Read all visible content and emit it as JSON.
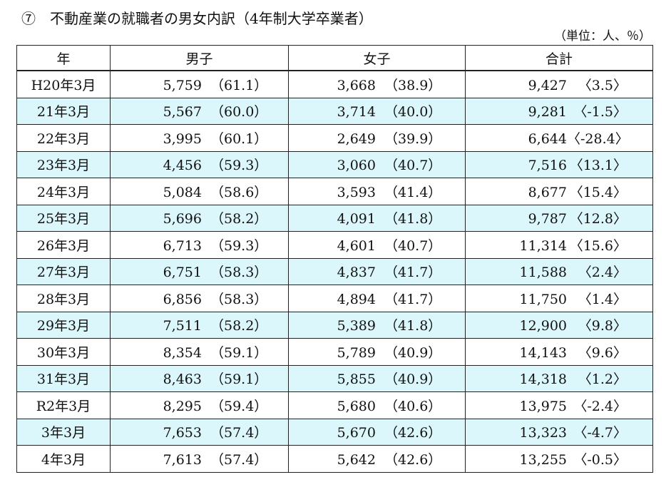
{
  "title": "⑦　不動産業の就職者の男女内訳（4年制大学卒業者）",
  "unit": "（単位：人、％）",
  "headers": {
    "year": "年",
    "male": "男子",
    "female": "女子",
    "total": "合計"
  },
  "rows": [
    {
      "year": "H20年3月",
      "male": "5,759",
      "male_pct": "（61.1）",
      "female": "3,668",
      "female_pct": "（38.9）",
      "total": "9,427",
      "change": "〈3.5〉"
    },
    {
      "year": "21年3月",
      "male": "5,567",
      "male_pct": "（60.0）",
      "female": "3,714",
      "female_pct": "（40.0）",
      "total": "9,281",
      "change": "〈-1.5〉"
    },
    {
      "year": "22年3月",
      "male": "3,995",
      "male_pct": "（60.1）",
      "female": "2,649",
      "female_pct": "（39.9）",
      "total": "6,644",
      "change": "〈-28.4〉"
    },
    {
      "year": "23年3月",
      "male": "4,456",
      "male_pct": "（59.3）",
      "female": "3,060",
      "female_pct": "（40.7）",
      "total": "7,516",
      "change": "〈13.1〉"
    },
    {
      "year": "24年3月",
      "male": "5,084",
      "male_pct": "（58.6）",
      "female": "3,593",
      "female_pct": "（41.4）",
      "total": "8,677",
      "change": "〈15.4〉"
    },
    {
      "year": "25年3月",
      "male": "5,696",
      "male_pct": "（58.2）",
      "female": "4,091",
      "female_pct": "（41.8）",
      "total": "9,787",
      "change": "〈12.8〉"
    },
    {
      "year": "26年3月",
      "male": "6,713",
      "male_pct": "（59.3）",
      "female": "4,601",
      "female_pct": "（40.7）",
      "total": "11,314",
      "change": "〈15.6〉"
    },
    {
      "year": "27年3月",
      "male": "6,751",
      "male_pct": "（58.3）",
      "female": "4,837",
      "female_pct": "（41.7）",
      "total": "11,588",
      "change": "〈2.4〉"
    },
    {
      "year": "28年3月",
      "male": "6,856",
      "male_pct": "（58.3）",
      "female": "4,894",
      "female_pct": "（41.7）",
      "total": "11,750",
      "change": "〈1.4〉"
    },
    {
      "year": "29年3月",
      "male": "7,511",
      "male_pct": "（58.2）",
      "female": "5,389",
      "female_pct": "（41.8）",
      "total": "12,900",
      "change": "〈9.8〉"
    },
    {
      "year": "30年3月",
      "male": "8,354",
      "male_pct": "（59.1）",
      "female": "5,789",
      "female_pct": "（40.9）",
      "total": "14,143",
      "change": "〈9.6〉"
    },
    {
      "year": "31年3月",
      "male": "8,463",
      "male_pct": "（59.1）",
      "female": "5,855",
      "female_pct": "（40.9）",
      "total": "14,318",
      "change": "〈1.2〉"
    },
    {
      "year": "R2年3月",
      "male": "8,295",
      "male_pct": "（59.4）",
      "female": "5,680",
      "female_pct": "（40.6）",
      "total": "13,975",
      "change": "〈-2.4〉"
    },
    {
      "year": "3年3月",
      "male": "7,653",
      "male_pct": "（57.4）",
      "female": "5,670",
      "female_pct": "（42.6）",
      "total": "13,323",
      "change": "〈-4.7〉"
    },
    {
      "year": "4年3月",
      "male": "7,613",
      "male_pct": "（57.4）",
      "female": "5,642",
      "female_pct": "（42.6）",
      "total": "13,255",
      "change": "〈-0.5〉"
    }
  ],
  "colors": {
    "row_shade": "#dcf7fb",
    "border": "#222222"
  }
}
